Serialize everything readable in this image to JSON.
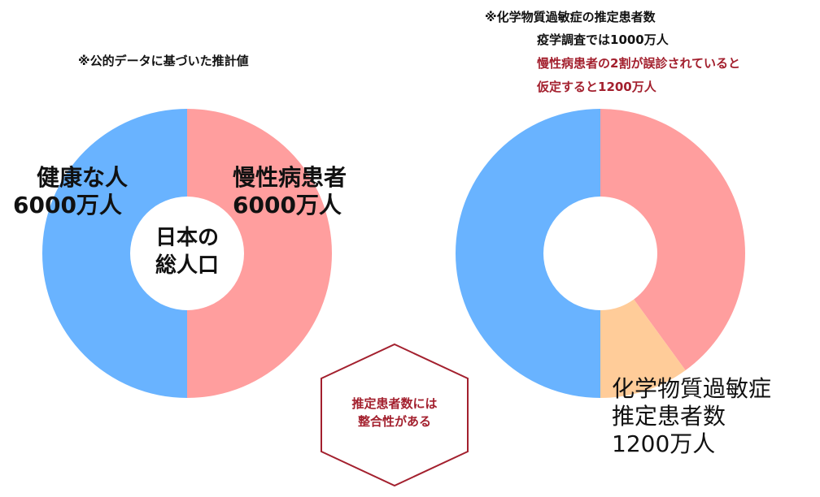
{
  "colors": {
    "healthy": "#69b3ff",
    "chronic": "#ff9e9e",
    "chemical": "#ffcc99",
    "accent_red": "#a3202e"
  },
  "notes": {
    "left_note": "※公的データに基づいた推計値",
    "right_note_1": "※化学物質過敏症の推定患者数",
    "right_note_2": "疫学調査では1000万人",
    "right_note_3": "慢性病患者の2割が誤診されていると",
    "right_note_4": "仮定すると1200万人"
  },
  "hexagon": {
    "line1": "推定患者数には",
    "line2": "整合性がある"
  },
  "chart_data": [
    {
      "type": "pie",
      "center_label": [
        "日本の",
        "総人口"
      ],
      "slices": [
        {
          "name_lines": [
            "慢性病患者",
            "6000万人"
          ],
          "value": 6000
        },
        {
          "name_lines": [
            "健康な人",
            "6000万人"
          ],
          "value": 6000
        }
      ],
      "unit": "万人"
    },
    {
      "type": "pie",
      "slices": [
        {
          "value": 4800
        },
        {
          "name_lines": [
            "化学物質過敏症",
            "推定患者数",
            "1200万人"
          ],
          "value": 1200
        },
        {
          "value": 6000
        }
      ],
      "unit": "万人"
    }
  ]
}
